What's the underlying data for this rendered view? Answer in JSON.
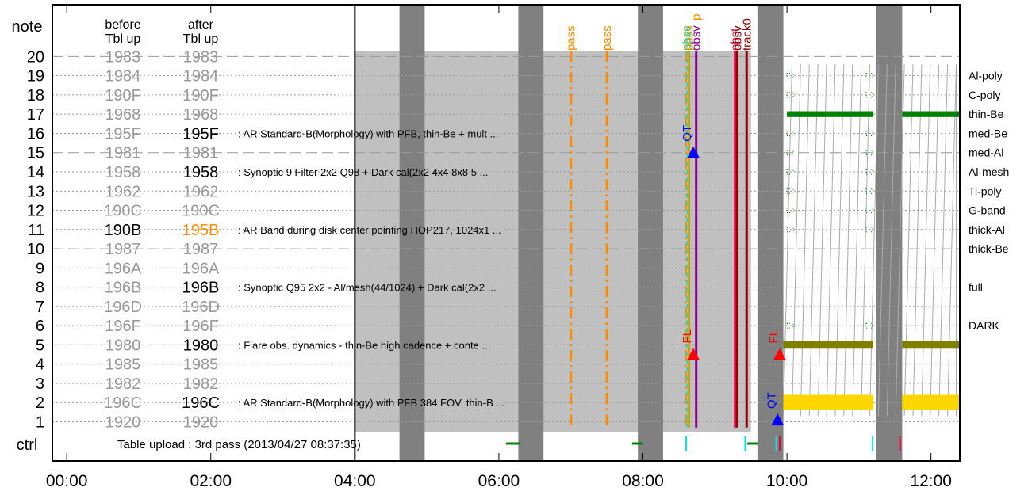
{
  "chart_data": {
    "type": "timeline",
    "y_title": "note",
    "col_headers": [
      {
        "id": "before",
        "line1": "before",
        "line2": "Tbl up"
      },
      {
        "id": "after",
        "line1": "after",
        "line2": "Tbl up"
      }
    ],
    "x_range_hours": [
      -0.2,
      12.4
    ],
    "x_ticks": [
      {
        "t": 0,
        "label": "00:00"
      },
      {
        "t": 2,
        "label": "02:00"
      },
      {
        "t": 4,
        "label": "04:00"
      },
      {
        "t": 6,
        "label": "06:00"
      },
      {
        "t": 8,
        "label": "08:00"
      },
      {
        "t": 10,
        "label": "10:00"
      },
      {
        "t": 12,
        "label": "12:00"
      }
    ],
    "rows": [
      {
        "n": "20",
        "before": "1983",
        "after": "1983",
        "dashed": true
      },
      {
        "n": "19",
        "before": "1984",
        "after": "1984"
      },
      {
        "n": "18",
        "before": "190F",
        "after": "190F"
      },
      {
        "n": "17",
        "before": "1968",
        "after": "1968"
      },
      {
        "n": "16",
        "before": "195F",
        "after": "195F",
        "after_style": "active",
        "desc": ": AR Standard-B(Morphology) with PFB, thin-Be + mult ..."
      },
      {
        "n": "15",
        "before": "1981",
        "after": "1981",
        "dashed": true
      },
      {
        "n": "14",
        "before": "1958",
        "after": "1958",
        "after_style": "active",
        "desc": ": Synoptic 9 Filter 2x2 Q98 + Dark cal(2x2 4x4 8x8 5 ..."
      },
      {
        "n": "13",
        "before": "1962",
        "after": "1962"
      },
      {
        "n": "12",
        "before": "190C",
        "after": "190C"
      },
      {
        "n": "11",
        "before": "190B",
        "after": "195B",
        "before_style": "active",
        "after_style": "changed",
        "desc": ": AR Band during disk center pointing HOP217, 1024x1 ..."
      },
      {
        "n": "10",
        "before": "1987",
        "after": "1987",
        "dashed": true
      },
      {
        "n": "9",
        "before": "196A",
        "after": "196A"
      },
      {
        "n": "8",
        "before": "196B",
        "after": "196B",
        "after_style": "active",
        "desc": ": Synoptic Q95 2x2 - Al/mesh(44/1024) + Dark cal(2x2 ..."
      },
      {
        "n": "7",
        "before": "196D",
        "after": "196D"
      },
      {
        "n": "6",
        "before": "196F",
        "after": "196F"
      },
      {
        "n": "5",
        "before": "1980",
        "after": "1980",
        "after_style": "active",
        "dashed": true,
        "desc": ": Flare obs. dynamics - thin-Be high cadence + conte ..."
      },
      {
        "n": "4",
        "before": "1985",
        "after": "1985"
      },
      {
        "n": "3",
        "before": "1982",
        "after": "1982"
      },
      {
        "n": "2",
        "before": "196C",
        "after": "196C",
        "after_style": "active",
        "desc": ": AR Standard-B(Morphology) with PFB 384 FOV, thin-B ..."
      },
      {
        "n": "1",
        "before": "1920",
        "after": "1920"
      }
    ],
    "ctrl_label": "ctrl",
    "ctrl_text": "Table upload : 3rd pass (2013/04/27 08:37:35)",
    "filters": [
      {
        "name": "Al-poly",
        "y": 19
      },
      {
        "name": "C-poly",
        "y": 18
      },
      {
        "name": "thin-Be",
        "y": 17
      },
      {
        "name": "med-Be",
        "y": 16
      },
      {
        "name": "med-Al",
        "y": 15
      },
      {
        "name": "Al-mesh",
        "y": 14
      },
      {
        "name": "Ti-poly",
        "y": 13
      },
      {
        "name": "G-band",
        "y": 12
      },
      {
        "name": "thick-Al",
        "y": 11
      },
      {
        "name": "thick-Be",
        "y": 10
      },
      {
        "name": "full",
        "y": 8
      },
      {
        "name": "DARK",
        "y": 6
      }
    ],
    "night_bands": [
      [
        4.62,
        4.97
      ],
      [
        6.27,
        6.62
      ],
      [
        7.93,
        8.28
      ],
      [
        9.59,
        9.95
      ],
      [
        11.24,
        11.6
      ]
    ],
    "shaded_region": {
      "from": 4.0,
      "to": 9.5,
      "y_top": 20.3
    },
    "pass_lines": [
      {
        "t": 7.0,
        "label": "pass",
        "color": "#ff8c00"
      },
      {
        "t": 7.5,
        "label": "pass",
        "color": "#ff8c00"
      }
    ],
    "event_lines": [
      {
        "t": 8.6,
        "label": "pass",
        "color": "#ff8c00",
        "style": "dashdot"
      },
      {
        "t": 8.615,
        "label": "obsv",
        "color": "#00e5e5",
        "style": "dash"
      },
      {
        "t": 8.64,
        "label": "pass",
        "color": "#d4a000",
        "style": "solid"
      },
      {
        "t": 8.74,
        "label": "obsv",
        "color": "#8b008b",
        "style": "solid"
      },
      {
        "t": 9.28,
        "label": "obst",
        "color": "#e8003c",
        "style": "solid"
      },
      {
        "t": 9.31,
        "label": "obsv",
        "color": "#8b0000",
        "style": "solid"
      },
      {
        "t": 9.44,
        "label": "track0",
        "color": "#8b0000",
        "style": "solid"
      }
    ],
    "event_top_label": "p",
    "markers": [
      {
        "t": 8.7,
        "y": 15,
        "label": "QT",
        "color": "#0000ff"
      },
      {
        "t": 8.7,
        "y": 4.5,
        "label": "FL",
        "color": "#ff0000"
      },
      {
        "t": 9.9,
        "y": 4.5,
        "label": "FL",
        "color": "#ff0000"
      },
      {
        "t": 9.87,
        "y": 1.1,
        "label": "QT",
        "color": "#0000ff"
      }
    ],
    "obs_bars": [
      {
        "from": 10.0,
        "to": 11.2,
        "y": 17,
        "color": "#008000",
        "h": 0.3
      },
      {
        "from": 11.6,
        "to": 12.4,
        "y": 17,
        "color": "#008000",
        "h": 0.3
      },
      {
        "from": 9.95,
        "to": 11.2,
        "y": 5,
        "color": "#808000",
        "h": 0.4
      },
      {
        "from": 11.6,
        "to": 12.4,
        "y": 5,
        "color": "#808000",
        "h": 0.4
      },
      {
        "from": 9.95,
        "to": 11.2,
        "y": 2,
        "color": "#ffd700",
        "h": 0.8
      },
      {
        "from": 11.6,
        "to": 12.4,
        "y": 2,
        "color": "#ffd700",
        "h": 0.8
      }
    ],
    "filter_ticks": [
      {
        "t": 10.0,
        "y": 19
      },
      {
        "t": 11.1,
        "y": 19
      },
      {
        "t": 10.0,
        "y": 18
      },
      {
        "t": 11.1,
        "y": 18
      },
      {
        "t": 10.0,
        "y": 16
      },
      {
        "t": 11.1,
        "y": 16
      },
      {
        "t": 10.0,
        "y": 15
      },
      {
        "t": 11.1,
        "y": 15
      },
      {
        "t": 10.0,
        "y": 14
      },
      {
        "t": 11.1,
        "y": 14
      },
      {
        "t": 10.0,
        "y": 13
      },
      {
        "t": 11.1,
        "y": 13
      },
      {
        "t": 10.0,
        "y": 12
      },
      {
        "t": 11.1,
        "y": 12
      },
      {
        "t": 10.0,
        "y": 11
      },
      {
        "t": 11.1,
        "y": 11
      },
      {
        "t": 10.0,
        "y": 6
      },
      {
        "t": 11.1,
        "y": 6
      }
    ],
    "ctrl_ticks": [
      {
        "from": 6.1,
        "to": 6.3,
        "color": "#008000",
        "kind": "seg"
      },
      {
        "from": 7.85,
        "to": 8.0,
        "color": "#008000",
        "kind": "seg"
      },
      {
        "from": 9.45,
        "to": 9.6,
        "color": "#008000",
        "kind": "seg"
      },
      {
        "from": 8.6,
        "to": 8.6,
        "color": "#00e5e5",
        "kind": "tick"
      },
      {
        "from": 9.42,
        "to": 9.42,
        "color": "#00e5e5",
        "kind": "tick"
      },
      {
        "from": 9.85,
        "to": 9.85,
        "color": "#00e5e5",
        "kind": "tick"
      },
      {
        "from": 9.9,
        "to": 9.9,
        "color": "#e8003c",
        "kind": "tick"
      },
      {
        "from": 11.19,
        "to": 11.19,
        "color": "#00e5e5",
        "kind": "tick"
      },
      {
        "from": 11.57,
        "to": 11.57,
        "color": "#e8003c",
        "kind": "tick"
      }
    ],
    "colors": {
      "night": "#808080",
      "shade": "#c0c0c0",
      "dim_text": "#999999",
      "active_text": "#000000",
      "changed_text": "#ff8c00",
      "grid": "#999999"
    }
  }
}
